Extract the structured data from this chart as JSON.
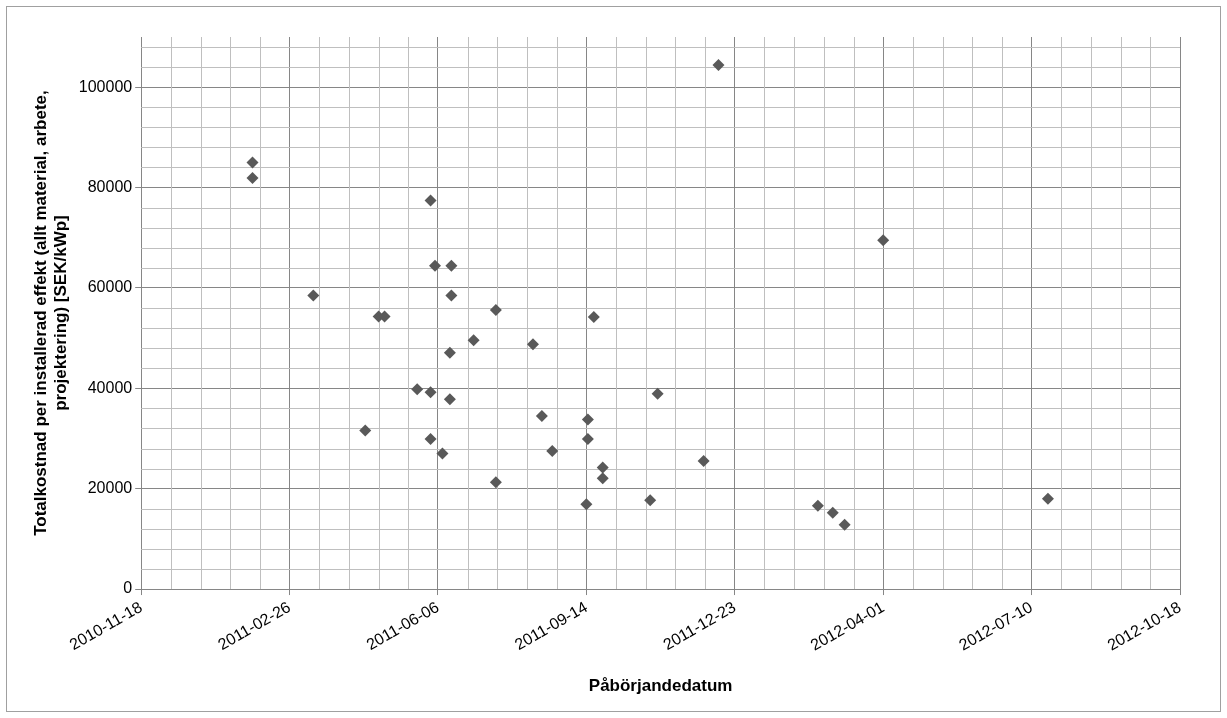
{
  "chart_data": {
    "type": "scatter",
    "xlabel": "Påbörjandedatum",
    "ylabel": "Totalkostnad per installerad effekt (allt material, arbete, projektering) [SEK/kWp]",
    "x": [
      "2011-02-01",
      "2011-02-01",
      "2011-06-01",
      "2011-06-04",
      "2011-06-15",
      "2011-03-14",
      "2011-06-15",
      "2011-04-27",
      "2011-05-01",
      "2011-07-15",
      "2011-09-19",
      "2011-06-30",
      "2011-08-09",
      "2011-06-14",
      "2011-05-23",
      "2011-06-01",
      "2011-06-14",
      "2011-11-01",
      "2011-08-15",
      "2011-09-15",
      "2011-04-18",
      "2011-09-15",
      "2011-06-01",
      "2011-08-22",
      "2011-06-09",
      "2011-09-25",
      "2011-09-25",
      "2011-07-15",
      "2011-09-14",
      "2011-10-27",
      "2011-12-12",
      "2012-04-01",
      "2011-12-02",
      "2012-02-17",
      "2012-02-27",
      "2012-03-06",
      "2012-07-21"
    ],
    "series": [
      {
        "color": "#595959",
        "values": [
          85000,
          81900,
          77400,
          64400,
          64400,
          58500,
          58500,
          54300,
          54300,
          55600,
          54200,
          49600,
          48800,
          47100,
          39800,
          39200,
          37800,
          38900,
          34500,
          33800,
          31600,
          29900,
          29900,
          27500,
          27000,
          24200,
          22100,
          21300,
          16900,
          17700,
          104400,
          69500,
          25500,
          16600,
          15200,
          12800,
          18000
        ]
      }
    ],
    "xlim": [
      "2010-11-18",
      "2012-10-18"
    ],
    "xticks": [
      "2010-11-18",
      "2011-02-26",
      "2011-06-06",
      "2011-09-14",
      "2011-12-23",
      "2012-04-01",
      "2012-07-10",
      "2012-10-18"
    ],
    "ylim": [
      0,
      110000
    ],
    "yticks": [
      0,
      20000,
      40000,
      60000,
      80000,
      100000
    ],
    "grid": true,
    "marker": "diamond",
    "legend": false
  }
}
